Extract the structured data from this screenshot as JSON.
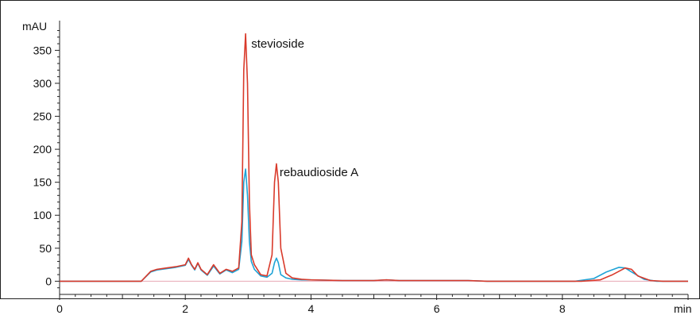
{
  "chart_data": {
    "type": "line",
    "title": "",
    "xlabel": "min",
    "ylabel": "mAU",
    "xlim": [
      0,
      10
    ],
    "ylim": [
      -20,
      395
    ],
    "x_ticks": [
      0,
      2,
      4,
      6,
      8
    ],
    "y_ticks": [
      0,
      50,
      100,
      150,
      200,
      250,
      300,
      350
    ],
    "grid": false,
    "colors": {
      "series_a": "#d93a2b",
      "series_b": "#1fa3d6"
    },
    "annotations": [
      {
        "text": "stevioside",
        "x": 3.05,
        "y": 360
      },
      {
        "text": "rebaudioside A",
        "x": 3.5,
        "y": 165
      }
    ],
    "series": [
      {
        "x": [
          0,
          1.3,
          1.45,
          1.55,
          1.7,
          1.85,
          2.0,
          2.05,
          2.1,
          2.15,
          2.2,
          2.25,
          2.35,
          2.45,
          2.55,
          2.65,
          2.75,
          2.85,
          2.9,
          2.93,
          2.96,
          2.99,
          3.02,
          3.05,
          3.1,
          3.2,
          3.3,
          3.38,
          3.42,
          3.45,
          3.48,
          3.52,
          3.6,
          3.7,
          3.85,
          4.0,
          4.5,
          5.0,
          5.2,
          5.4,
          6.0,
          6.5,
          6.8,
          7.5,
          8.3,
          8.6,
          8.8,
          9.0,
          9.1,
          9.2,
          9.4,
          9.6,
          10.0
        ],
        "y": [
          0,
          0,
          15,
          18,
          20,
          22,
          25,
          35,
          25,
          18,
          28,
          18,
          10,
          25,
          12,
          18,
          15,
          20,
          90,
          320,
          375,
          300,
          120,
          40,
          25,
          10,
          8,
          40,
          150,
          178,
          150,
          50,
          12,
          5,
          3,
          2,
          1,
          1,
          2,
          1,
          1,
          1,
          0,
          0,
          0,
          2,
          10,
          20,
          18,
          8,
          1,
          0,
          0
        ]
      },
      {
        "x": [
          0,
          1.3,
          1.45,
          1.55,
          1.7,
          1.85,
          2.0,
          2.05,
          2.1,
          2.15,
          2.2,
          2.25,
          2.35,
          2.45,
          2.55,
          2.65,
          2.75,
          2.85,
          2.9,
          2.93,
          2.96,
          2.99,
          3.02,
          3.05,
          3.1,
          3.2,
          3.3,
          3.38,
          3.42,
          3.45,
          3.48,
          3.52,
          3.6,
          3.7,
          3.85,
          4.0,
          4.5,
          5.0,
          5.2,
          5.4,
          6.0,
          6.5,
          6.8,
          7.5,
          8.2,
          8.5,
          8.7,
          8.9,
          9.0,
          9.1,
          9.3,
          9.5,
          10.0
        ],
        "y": [
          0,
          0,
          14,
          17,
          19,
          21,
          24,
          33,
          24,
          17,
          27,
          17,
          9,
          23,
          11,
          17,
          13,
          18,
          60,
          150,
          170,
          130,
          60,
          30,
          18,
          8,
          6,
          12,
          28,
          35,
          28,
          10,
          5,
          3,
          2,
          2,
          1,
          1,
          2,
          1,
          1,
          1,
          0,
          0,
          0,
          4,
          14,
          21,
          20,
          14,
          3,
          0,
          0
        ]
      }
    ]
  }
}
